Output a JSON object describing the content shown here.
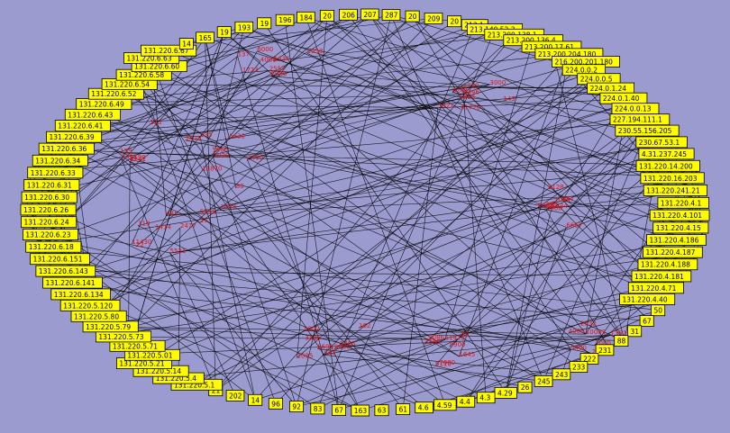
{
  "colors": {
    "background": "#9b9bd0",
    "node_fill": "#ffff00",
    "node_stroke": "#000000",
    "edge": "#000000",
    "port_label": "#e01010"
  },
  "outer_nodes": [
    "184",
    "20",
    "206",
    "207",
    "287",
    "20",
    "209",
    "20",
    "213.1",
    "213.140.52.3",
    "213.200.138.1",
    "213.200.136.4",
    "213.200.17.61",
    "213.200.204.180",
    "216.200.201.180",
    "224.0.0.2",
    "224.0.0.5",
    "224.0.1.24",
    "224.0.1.40",
    "224.0.0.13",
    "227.194.111.1",
    "230.55.156.205",
    "230.67.53.1",
    "4.31.237.245",
    "131.220.14.200",
    "131.220.16.203",
    "131.220.241.21",
    "131.220.4.1",
    "131.220.4.101",
    "131.220.4.15",
    "131.220.4.186",
    "131.220.4.187",
    "131.220.4.188",
    "131.220.4.181",
    "131.220.4.71",
    "131.220.4.40",
    "50",
    "67",
    "31",
    "88",
    "231",
    "222",
    "233",
    "243",
    "245",
    "26",
    "4.29",
    "4.3",
    "4.4",
    "4.59",
    "4.6",
    "61",
    "63",
    "163",
    "67",
    "83",
    "92",
    "96",
    "14",
    "202",
    "21",
    "131.220.5.1",
    "131.220.5.4",
    "131.220.5.14",
    "131.220.5.21",
    "131.220.5.01",
    "131.220.5.71",
    "131.220.5.73",
    "131.220.5.79",
    "131.220.5.80",
    "131.220.5.120",
    "131.220.6.134",
    "131.220.6.141",
    "131.220.6.143",
    "131.220.6.151",
    "131.220.6.18",
    "131.220.6.23",
    "131.220.6.24",
    "131.220.6.26",
    "131.220.6.30",
    "131.220.6.31",
    "131.220.6.33",
    "131.220.6.34",
    "131.220.6.36",
    "131.220.6.39",
    "131.220.6.41",
    "131.220.6.43",
    "131.220.6.49",
    "131.220.6.52",
    "131.220.6.54",
    "131.220.6.58",
    "131.220.6.60",
    "131.220.6.63",
    "131.220.6.67",
    "14",
    "165",
    "19",
    "193",
    "19",
    "196"
  ],
  "port_labels": [
    "1030",
    "11870",
    "1058",
    "1065",
    "1080",
    "1095",
    "11423",
    "10083",
    "11430",
    "113",
    "5555",
    "1723",
    "1730",
    "1734",
    "1765",
    "2086",
    "2332",
    "2477",
    "2478",
    "2490",
    "4008",
    "41770",
    "5000",
    "5002",
    "53",
    "5400",
    "5531",
    "5666",
    "80",
    "8080",
    "8281",
    "8888",
    "9000",
    "9110",
    "1352",
    "1414",
    "1421",
    "1433",
    "1434",
    "1521",
    "161",
    "162",
    "1645",
    "21",
    "22",
    "2241",
    "25",
    "2557",
    "3000",
    "3128",
    "3306",
    "3389",
    "4000",
    "445",
    "5190",
    "5632",
    "6000",
    "6346",
    "6667",
    "6699",
    "7000",
    "1080",
    "119",
    "139",
    "135",
    "137",
    "143",
    "389",
    "443",
    "5900"
  ]
}
